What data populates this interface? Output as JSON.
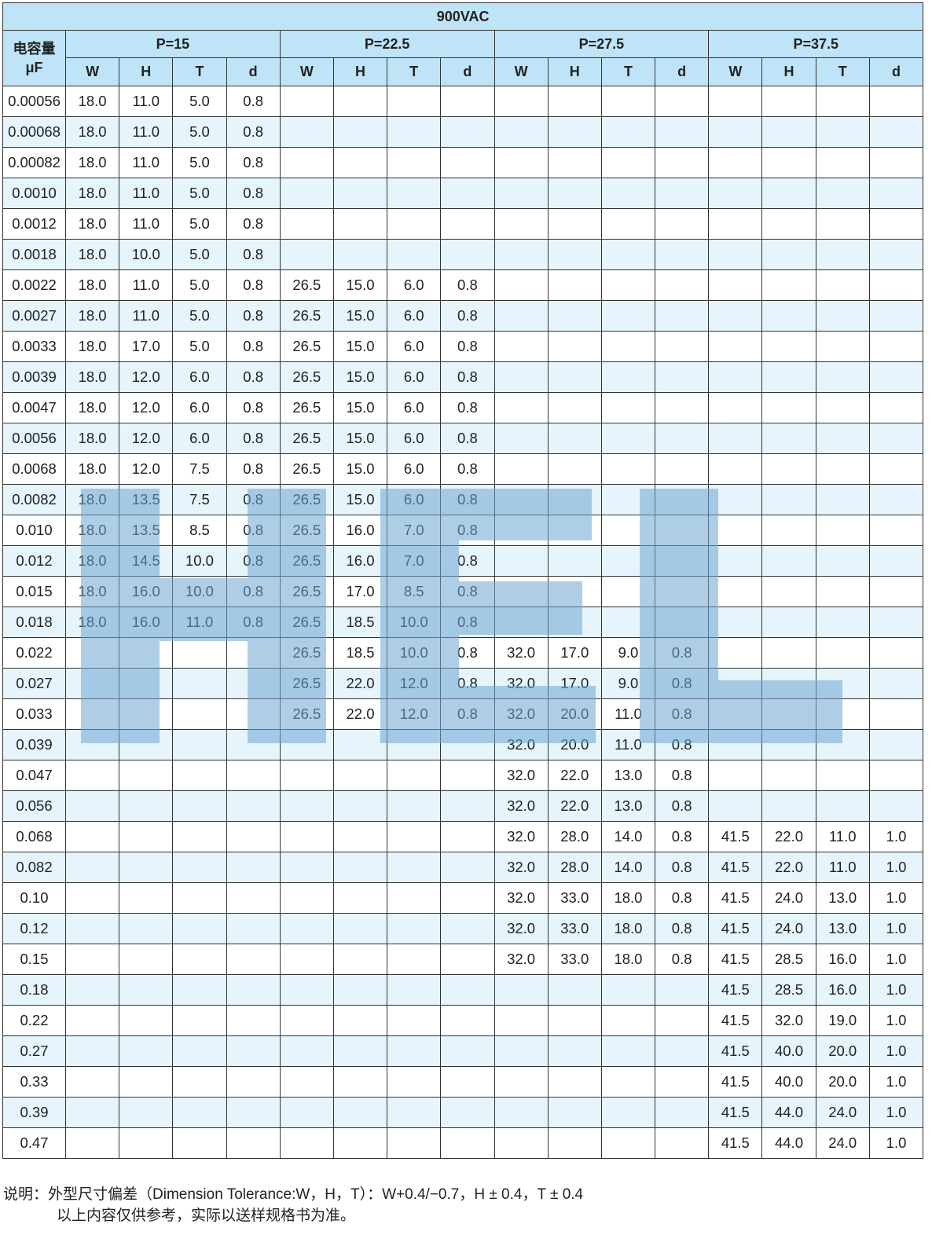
{
  "title": "900VAC",
  "capacitance_header": {
    "line1": "电容量",
    "line2": "μF"
  },
  "groups": [
    "P=15",
    "P=22.5",
    "P=27.5",
    "P=37.5"
  ],
  "sub_headers": [
    "W",
    "H",
    "T",
    "d"
  ],
  "watermark": "HEL",
  "watermark_color": "#6ea5d2",
  "header_color": "#bfe4f8",
  "stripe_color": "#e6f4fc",
  "rows": [
    {
      "cap": "0.00056",
      "v": [
        "18.0",
        "11.0",
        "5.0",
        "0.8",
        "",
        "",
        "",
        "",
        "",
        "",
        "",
        "",
        "",
        "",
        "",
        ""
      ]
    },
    {
      "cap": "0.00068",
      "v": [
        "18.0",
        "11.0",
        "5.0",
        "0.8",
        "",
        "",
        "",
        "",
        "",
        "",
        "",
        "",
        "",
        "",
        "",
        ""
      ]
    },
    {
      "cap": "0.00082",
      "v": [
        "18.0",
        "11.0",
        "5.0",
        "0.8",
        "",
        "",
        "",
        "",
        "",
        "",
        "",
        "",
        "",
        "",
        "",
        ""
      ]
    },
    {
      "cap": "0.0010",
      "v": [
        "18.0",
        "11.0",
        "5.0",
        "0.8",
        "",
        "",
        "",
        "",
        "",
        "",
        "",
        "",
        "",
        "",
        "",
        ""
      ]
    },
    {
      "cap": "0.0012",
      "v": [
        "18.0",
        "11.0",
        "5.0",
        "0.8",
        "",
        "",
        "",
        "",
        "",
        "",
        "",
        "",
        "",
        "",
        "",
        ""
      ]
    },
    {
      "cap": "0.0018",
      "v": [
        "18.0",
        "10.0",
        "5.0",
        "0.8",
        "",
        "",
        "",
        "",
        "",
        "",
        "",
        "",
        "",
        "",
        "",
        ""
      ]
    },
    {
      "cap": "0.0022",
      "v": [
        "18.0",
        "11.0",
        "5.0",
        "0.8",
        "26.5",
        "15.0",
        "6.0",
        "0.8",
        "",
        "",
        "",
        "",
        "",
        "",
        "",
        ""
      ]
    },
    {
      "cap": "0.0027",
      "v": [
        "18.0",
        "11.0",
        "5.0",
        "0.8",
        "26.5",
        "15.0",
        "6.0",
        "0.8",
        "",
        "",
        "",
        "",
        "",
        "",
        "",
        ""
      ]
    },
    {
      "cap": "0.0033",
      "v": [
        "18.0",
        "17.0",
        "5.0",
        "0.8",
        "26.5",
        "15.0",
        "6.0",
        "0.8",
        "",
        "",
        "",
        "",
        "",
        "",
        "",
        ""
      ]
    },
    {
      "cap": "0.0039",
      "v": [
        "18.0",
        "12.0",
        "6.0",
        "0.8",
        "26.5",
        "15.0",
        "6.0",
        "0.8",
        "",
        "",
        "",
        "",
        "",
        "",
        "",
        ""
      ]
    },
    {
      "cap": "0.0047",
      "v": [
        "18.0",
        "12.0",
        "6.0",
        "0.8",
        "26.5",
        "15.0",
        "6.0",
        "0.8",
        "",
        "",
        "",
        "",
        "",
        "",
        "",
        ""
      ]
    },
    {
      "cap": "0.0056",
      "v": [
        "18.0",
        "12.0",
        "6.0",
        "0.8",
        "26.5",
        "15.0",
        "6.0",
        "0.8",
        "",
        "",
        "",
        "",
        "",
        "",
        "",
        ""
      ]
    },
    {
      "cap": "0.0068",
      "v": [
        "18.0",
        "12.0",
        "7.5",
        "0.8",
        "26.5",
        "15.0",
        "6.0",
        "0.8",
        "",
        "",
        "",
        "",
        "",
        "",
        "",
        ""
      ]
    },
    {
      "cap": "0.0082",
      "v": [
        "18.0",
        "13.5",
        "7.5",
        "0.8",
        "26.5",
        "15.0",
        "6.0",
        "0.8",
        "",
        "",
        "",
        "",
        "",
        "",
        "",
        ""
      ]
    },
    {
      "cap": "0.010",
      "v": [
        "18.0",
        "13.5",
        "8.5",
        "0.8",
        "26.5",
        "16.0",
        "7.0",
        "0.8",
        "",
        "",
        "",
        "",
        "",
        "",
        "",
        ""
      ]
    },
    {
      "cap": "0.012",
      "v": [
        "18.0",
        "14.5",
        "10.0",
        "0.8",
        "26.5",
        "16.0",
        "7.0",
        "0.8",
        "",
        "",
        "",
        "",
        "",
        "",
        "",
        ""
      ]
    },
    {
      "cap": "0.015",
      "v": [
        "18.0",
        "16.0",
        "10.0",
        "0.8",
        "26.5",
        "17.0",
        "8.5",
        "0.8",
        "",
        "",
        "",
        "",
        "",
        "",
        "",
        ""
      ]
    },
    {
      "cap": "0.018",
      "v": [
        "18.0",
        "16.0",
        "11.0",
        "0.8",
        "26.5",
        "18.5",
        "10.0",
        "0.8",
        "",
        "",
        "",
        "",
        "",
        "",
        "",
        ""
      ]
    },
    {
      "cap": "0.022",
      "v": [
        "",
        "",
        "",
        "",
        "26.5",
        "18.5",
        "10.0",
        "0.8",
        "32.0",
        "17.0",
        "9.0",
        "0.8",
        "",
        "",
        "",
        ""
      ]
    },
    {
      "cap": "0.027",
      "v": [
        "",
        "",
        "",
        "",
        "26.5",
        "22.0",
        "12.0",
        "0.8",
        "32.0",
        "17.0",
        "9.0",
        "0.8",
        "",
        "",
        "",
        ""
      ]
    },
    {
      "cap": "0.033",
      "v": [
        "",
        "",
        "",
        "",
        "26.5",
        "22.0",
        "12.0",
        "0.8",
        "32.0",
        "20.0",
        "11.0",
        "0.8",
        "",
        "",
        "",
        ""
      ]
    },
    {
      "cap": "0.039",
      "v": [
        "",
        "",
        "",
        "",
        "",
        "",
        "",
        "",
        "32.0",
        "20.0",
        "11.0",
        "0.8",
        "",
        "",
        "",
        ""
      ]
    },
    {
      "cap": "0.047",
      "v": [
        "",
        "",
        "",
        "",
        "",
        "",
        "",
        "",
        "32.0",
        "22.0",
        "13.0",
        "0.8",
        "",
        "",
        "",
        ""
      ]
    },
    {
      "cap": "0.056",
      "v": [
        "",
        "",
        "",
        "",
        "",
        "",
        "",
        "",
        "32.0",
        "22.0",
        "13.0",
        "0.8",
        "",
        "",
        "",
        ""
      ]
    },
    {
      "cap": "0.068",
      "v": [
        "",
        "",
        "",
        "",
        "",
        "",
        "",
        "",
        "32.0",
        "28.0",
        "14.0",
        "0.8",
        "41.5",
        "22.0",
        "11.0",
        "1.0"
      ]
    },
    {
      "cap": "0.082",
      "v": [
        "",
        "",
        "",
        "",
        "",
        "",
        "",
        "",
        "32.0",
        "28.0",
        "14.0",
        "0.8",
        "41.5",
        "22.0",
        "11.0",
        "1.0"
      ]
    },
    {
      "cap": "0.10",
      "v": [
        "",
        "",
        "",
        "",
        "",
        "",
        "",
        "",
        "32.0",
        "33.0",
        "18.0",
        "0.8",
        "41.5",
        "24.0",
        "13.0",
        "1.0"
      ]
    },
    {
      "cap": "0.12",
      "v": [
        "",
        "",
        "",
        "",
        "",
        "",
        "",
        "",
        "32.0",
        "33.0",
        "18.0",
        "0.8",
        "41.5",
        "24.0",
        "13.0",
        "1.0"
      ]
    },
    {
      "cap": "0.15",
      "v": [
        "",
        "",
        "",
        "",
        "",
        "",
        "",
        "",
        "32.0",
        "33.0",
        "18.0",
        "0.8",
        "41.5",
        "28.5",
        "16.0",
        "1.0"
      ]
    },
    {
      "cap": "0.18",
      "v": [
        "",
        "",
        "",
        "",
        "",
        "",
        "",
        "",
        "",
        "",
        "",
        "",
        "41.5",
        "28.5",
        "16.0",
        "1.0"
      ]
    },
    {
      "cap": "0.22",
      "v": [
        "",
        "",
        "",
        "",
        "",
        "",
        "",
        "",
        "",
        "",
        "",
        "",
        "41.5",
        "32.0",
        "19.0",
        "1.0"
      ]
    },
    {
      "cap": "0.27",
      "v": [
        "",
        "",
        "",
        "",
        "",
        "",
        "",
        "",
        "",
        "",
        "",
        "",
        "41.5",
        "40.0",
        "20.0",
        "1.0"
      ]
    },
    {
      "cap": "0.33",
      "v": [
        "",
        "",
        "",
        "",
        "",
        "",
        "",
        "",
        "",
        "",
        "",
        "",
        "41.5",
        "40.0",
        "20.0",
        "1.0"
      ]
    },
    {
      "cap": "0.39",
      "v": [
        "",
        "",
        "",
        "",
        "",
        "",
        "",
        "",
        "",
        "",
        "",
        "",
        "41.5",
        "44.0",
        "24.0",
        "1.0"
      ]
    },
    {
      "cap": "0.47",
      "v": [
        "",
        "",
        "",
        "",
        "",
        "",
        "",
        "",
        "",
        "",
        "",
        "",
        "41.5",
        "44.0",
        "24.0",
        "1.0"
      ]
    }
  ],
  "notes": {
    "line1": "说明：外型尺寸偏差（Dimension Tolerance:W，H，T）：W+0.4/−0.7，H ± 0.4，T ± 0.4",
    "line2": "以上内容仅供参考，实际以送样规格书为准。"
  }
}
